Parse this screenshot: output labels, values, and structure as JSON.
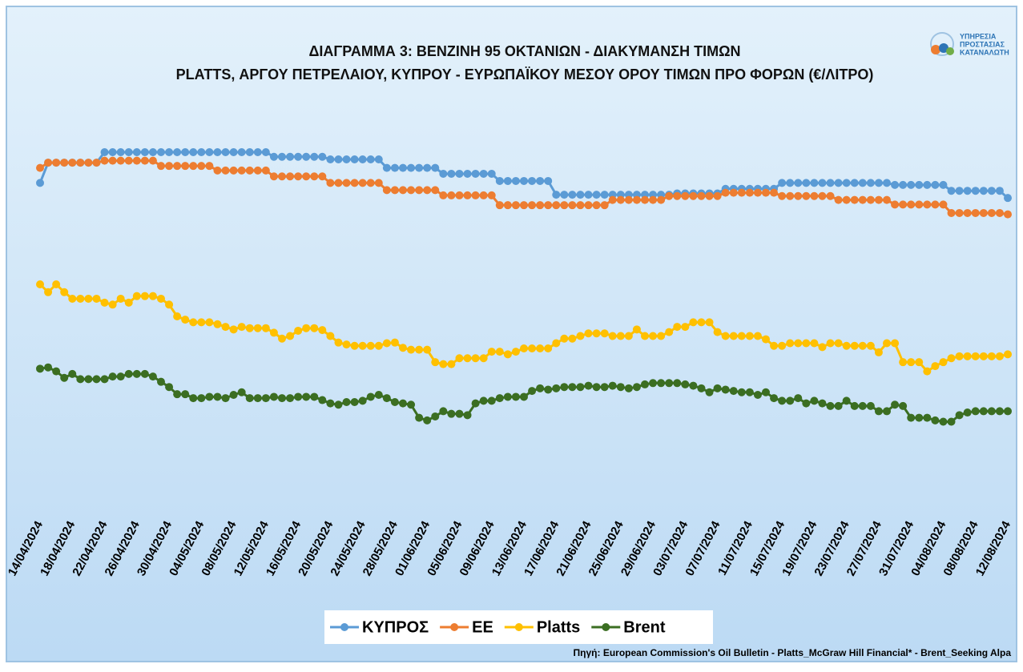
{
  "chart_data": {
    "type": "line",
    "title": "ΔΙΑΓΡΑΜΜΑ 3: ΒΕΝΖΙΝΗ 95 ΟΚΤΑΝΙΩΝ - ΔΙΑΚΥΜΑΝΣΗ ΤΙΜΩΝ",
    "subtitle": "PLATTS, ΑΡΓΟΥ ΠΕΤΡΕΛΑΙΟΥ, ΚΥΠΡΟΥ - ΕΥΡΩΠΑΪΚΟΥ ΜΕΣΟΥ ΟΡΟΥ ΤΙΜΩΝ ΠΡΟ ΦΟΡΩΝ (€/ΛΙΤΡΟ)",
    "logo": [
      "ΥΠΗΡΕΣΙΑ",
      "ΠΡΟΣΤΑΣΙΑΣ",
      "ΚΑΤΑΝΑΛΩΤΗ"
    ],
    "source": "Πηγή: European Commission's Oil Bulletin - Platts_McGraw Hill Financial* - Brent_Seeking Alpa",
    "legend": "bottom",
    "ylim": [
      0.3,
      0.9
    ],
    "categories": [
      "14/04/2024",
      null,
      null,
      null,
      "18/04/2024",
      null,
      null,
      null,
      "22/04/2024",
      null,
      null,
      null,
      "26/04/2024",
      null,
      null,
      null,
      "30/04/2024",
      null,
      null,
      null,
      "04/05/2024",
      null,
      null,
      null,
      "08/05/2024",
      null,
      null,
      null,
      "12/05/2024",
      null,
      null,
      null,
      "16/05/2024",
      null,
      null,
      null,
      "20/05/2024",
      null,
      null,
      null,
      "24/05/2024",
      null,
      null,
      null,
      "28/05/2024",
      null,
      null,
      null,
      "01/06/2024",
      null,
      null,
      null,
      "05/06/2024",
      null,
      null,
      null,
      "09/06/2024",
      null,
      null,
      null,
      "13/06/2024",
      null,
      null,
      null,
      "17/06/2024",
      null,
      null,
      null,
      "21/06/2024",
      null,
      null,
      null,
      "25/06/2024",
      null,
      null,
      null,
      "29/06/2024",
      null,
      null,
      null,
      "03/07/2024",
      null,
      null,
      null,
      "07/07/2024",
      null,
      null,
      null,
      "11/07/2024",
      null,
      null,
      null,
      "15/07/2024",
      null,
      null,
      null,
      "19/07/2024",
      null,
      null,
      null,
      "23/07/2024",
      null,
      null,
      null,
      "27/07/2024",
      null,
      null,
      null,
      "31/07/2024",
      null,
      null,
      null,
      "04/08/2024",
      null,
      null,
      null,
      "08/08/2024",
      null,
      null,
      null,
      "12/08/2024"
    ],
    "series": [
      {
        "name": "ΚΥΠΡΟΣ",
        "color": "#5b9bd5",
        "values": [
          0.804,
          0.835,
          0.835,
          0.835,
          0.835,
          0.835,
          0.835,
          0.835,
          0.851,
          0.851,
          0.851,
          0.851,
          0.851,
          0.851,
          0.851,
          0.851,
          0.851,
          0.851,
          0.851,
          0.851,
          0.851,
          0.851,
          0.851,
          0.851,
          0.851,
          0.851,
          0.851,
          0.851,
          0.851,
          0.844,
          0.844,
          0.844,
          0.844,
          0.844,
          0.844,
          0.844,
          0.84,
          0.84,
          0.84,
          0.84,
          0.84,
          0.84,
          0.84,
          0.827,
          0.827,
          0.827,
          0.827,
          0.827,
          0.827,
          0.827,
          0.818,
          0.818,
          0.818,
          0.818,
          0.818,
          0.818,
          0.818,
          0.807,
          0.807,
          0.807,
          0.807,
          0.807,
          0.807,
          0.807,
          0.786,
          0.786,
          0.786,
          0.786,
          0.786,
          0.786,
          0.786,
          0.786,
          0.786,
          0.786,
          0.786,
          0.786,
          0.786,
          0.786,
          0.786,
          0.788,
          0.788,
          0.788,
          0.788,
          0.788,
          0.788,
          0.795,
          0.795,
          0.795,
          0.795,
          0.795,
          0.795,
          0.795,
          0.804,
          0.804,
          0.804,
          0.804,
          0.804,
          0.804,
          0.804,
          0.804,
          0.804,
          0.804,
          0.804,
          0.804,
          0.804,
          0.804,
          0.801,
          0.801,
          0.801,
          0.801,
          0.801,
          0.801,
          0.801,
          0.792,
          0.792,
          0.792,
          0.792,
          0.792,
          0.792,
          0.792,
          0.781
        ]
      },
      {
        "name": "ΕΕ",
        "color": "#ed7d31",
        "values": [
          0.827,
          0.835,
          0.835,
          0.835,
          0.835,
          0.835,
          0.835,
          0.835,
          0.838,
          0.838,
          0.838,
          0.838,
          0.838,
          0.838,
          0.838,
          0.83,
          0.83,
          0.83,
          0.83,
          0.83,
          0.83,
          0.83,
          0.823,
          0.823,
          0.823,
          0.823,
          0.823,
          0.823,
          0.823,
          0.814,
          0.814,
          0.814,
          0.814,
          0.814,
          0.814,
          0.814,
          0.804,
          0.804,
          0.804,
          0.804,
          0.804,
          0.804,
          0.804,
          0.793,
          0.793,
          0.793,
          0.793,
          0.793,
          0.793,
          0.793,
          0.785,
          0.785,
          0.785,
          0.785,
          0.785,
          0.785,
          0.785,
          0.77,
          0.77,
          0.77,
          0.77,
          0.77,
          0.77,
          0.77,
          0.77,
          0.77,
          0.77,
          0.77,
          0.77,
          0.77,
          0.77,
          0.778,
          0.778,
          0.778,
          0.778,
          0.778,
          0.778,
          0.778,
          0.784,
          0.784,
          0.784,
          0.784,
          0.784,
          0.784,
          0.784,
          0.789,
          0.789,
          0.789,
          0.789,
          0.789,
          0.789,
          0.789,
          0.784,
          0.784,
          0.784,
          0.784,
          0.784,
          0.784,
          0.784,
          0.778,
          0.778,
          0.778,
          0.778,
          0.778,
          0.778,
          0.778,
          0.771,
          0.771,
          0.771,
          0.771,
          0.771,
          0.771,
          0.771,
          0.758,
          0.758,
          0.758,
          0.758,
          0.758,
          0.758,
          0.758,
          0.756
        ]
      },
      {
        "name": "Platts",
        "color": "#ffc000",
        "values": [
          0.649,
          0.637,
          0.649,
          0.637,
          0.627,
          0.627,
          0.627,
          0.627,
          0.621,
          0.618,
          0.627,
          0.621,
          0.631,
          0.631,
          0.631,
          0.627,
          0.618,
          0.6,
          0.595,
          0.591,
          0.591,
          0.591,
          0.588,
          0.584,
          0.58,
          0.584,
          0.582,
          0.582,
          0.582,
          0.575,
          0.566,
          0.57,
          0.578,
          0.582,
          0.582,
          0.579,
          0.57,
          0.56,
          0.557,
          0.555,
          0.555,
          0.555,
          0.555,
          0.559,
          0.56,
          0.552,
          0.549,
          0.549,
          0.549,
          0.53,
          0.527,
          0.527,
          0.536,
          0.536,
          0.536,
          0.536,
          0.546,
          0.546,
          0.542,
          0.546,
          0.551,
          0.551,
          0.551,
          0.551,
          0.559,
          0.566,
          0.566,
          0.57,
          0.574,
          0.574,
          0.574,
          0.57,
          0.57,
          0.57,
          0.58,
          0.57,
          0.57,
          0.57,
          0.576,
          0.584,
          0.584,
          0.591,
          0.591,
          0.591,
          0.576,
          0.57,
          0.57,
          0.57,
          0.57,
          0.57,
          0.565,
          0.555,
          0.555,
          0.559,
          0.559,
          0.559,
          0.559,
          0.553,
          0.559,
          0.559,
          0.555,
          0.555,
          0.555,
          0.555,
          0.545,
          0.559,
          0.559,
          0.53,
          0.53,
          0.53,
          0.516,
          0.524,
          0.53,
          0.536,
          0.539,
          0.539,
          0.539,
          0.539,
          0.539,
          0.539,
          0.542
        ]
      },
      {
        "name": "Brent",
        "color": "#3b6e22",
        "values": [
          0.52,
          0.522,
          0.516,
          0.506,
          0.512,
          0.504,
          0.504,
          0.504,
          0.504,
          0.508,
          0.508,
          0.512,
          0.512,
          0.512,
          0.508,
          0.5,
          0.492,
          0.481,
          0.481,
          0.475,
          0.475,
          0.477,
          0.477,
          0.475,
          0.48,
          0.484,
          0.475,
          0.475,
          0.475,
          0.477,
          0.475,
          0.475,
          0.477,
          0.477,
          0.477,
          0.472,
          0.467,
          0.465,
          0.469,
          0.469,
          0.471,
          0.477,
          0.48,
          0.475,
          0.469,
          0.467,
          0.465,
          0.445,
          0.441,
          0.447,
          0.455,
          0.451,
          0.451,
          0.449,
          0.467,
          0.471,
          0.471,
          0.475,
          0.477,
          0.477,
          0.477,
          0.486,
          0.49,
          0.488,
          0.49,
          0.492,
          0.492,
          0.492,
          0.494,
          0.492,
          0.492,
          0.494,
          0.492,
          0.49,
          0.492,
          0.496,
          0.498,
          0.498,
          0.498,
          0.498,
          0.496,
          0.494,
          0.49,
          0.484,
          0.49,
          0.488,
          0.486,
          0.484,
          0.484,
          0.48,
          0.484,
          0.475,
          0.471,
          0.471,
          0.475,
          0.467,
          0.471,
          0.467,
          0.463,
          0.463,
          0.471,
          0.463,
          0.463,
          0.463,
          0.455,
          0.455,
          0.465,
          0.463,
          0.445,
          0.445,
          0.445,
          0.441,
          0.439,
          0.439,
          0.449,
          0.453,
          0.455,
          0.455,
          0.455,
          0.455,
          0.455
        ]
      }
    ]
  }
}
